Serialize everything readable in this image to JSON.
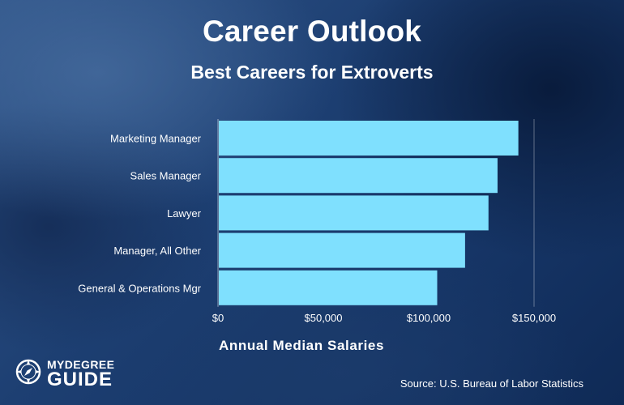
{
  "chart_data": {
    "type": "bar",
    "orientation": "horizontal",
    "title": "Career Outlook",
    "subtitle": "Best Careers for Extroverts",
    "xlabel": "Annual Median Salaries",
    "categories": [
      "Marketing Manager",
      "Sales Manager",
      "Lawyer",
      "Manager, All Other",
      "General & Operations Mgr"
    ],
    "values": [
      142170,
      132290,
      127990,
      116880,
      103650
    ],
    "xlim": [
      0,
      150000
    ],
    "xticks": [
      0,
      50000,
      100000,
      150000
    ],
    "xtick_labels": [
      "$0",
      "$50,000",
      "$100,000",
      "$150,000"
    ],
    "bar_color": "#7fe0fe",
    "grid": "vertical line at max"
  },
  "logo": {
    "line1": "MYDEGREE",
    "line2": "GUIDE",
    "icon": "compass-icon"
  },
  "source": "Source: U.S. Bureau of Labor Statistics"
}
